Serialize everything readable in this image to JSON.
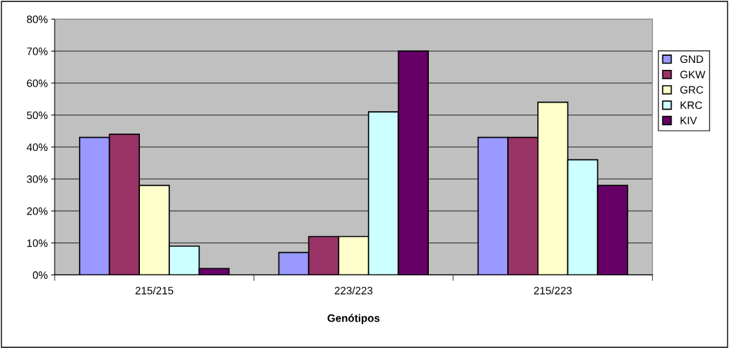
{
  "chart_data": {
    "type": "bar",
    "xlabel": "Genótipos",
    "categories": [
      "215/215",
      "223/223",
      "215/223"
    ],
    "series": [
      {
        "name": "GND",
        "color": "#9999ff",
        "values": [
          43,
          7,
          43
        ]
      },
      {
        "name": "GKW",
        "color": "#993366",
        "values": [
          44,
          12,
          43
        ]
      },
      {
        "name": "GRC",
        "color": "#ffffcc",
        "values": [
          28,
          12,
          54
        ]
      },
      {
        "name": "KRC",
        "color": "#ccffff",
        "values": [
          9,
          51,
          36
        ]
      },
      {
        "name": "KIV",
        "color": "#660066",
        "values": [
          2,
          70,
          28
        ]
      }
    ],
    "ylim": [
      0,
      80
    ],
    "yticks": [
      {
        "value": 0,
        "label": "0%"
      },
      {
        "value": 10,
        "label": "10%"
      },
      {
        "value": 20,
        "label": "20%"
      },
      {
        "value": 30,
        "label": "30%"
      },
      {
        "value": 40,
        "label": "40%"
      },
      {
        "value": 50,
        "label": "50%"
      },
      {
        "value": 60,
        "label": "60%"
      },
      {
        "value": 70,
        "label": "70%"
      },
      {
        "value": 80,
        "label": "80%"
      }
    ],
    "grid": "y",
    "legend": "right"
  }
}
